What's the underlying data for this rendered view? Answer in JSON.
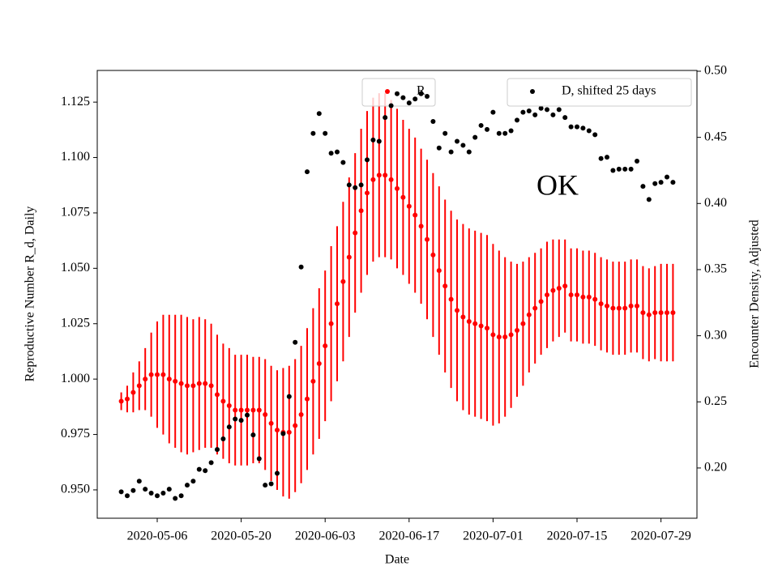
{
  "chart_data": {
    "type": "scatter",
    "x_label": "Date",
    "y_label": "Reproductive Number R_d, Daily",
    "y2_label": "Encounter Density, Adjusted",
    "annotation": "OK",
    "xlim": [
      "2020-04-26",
      "2020-08-04"
    ],
    "xticks": [
      "2020-05-06",
      "2020-05-20",
      "2020-06-03",
      "2020-06-17",
      "2020-07-01",
      "2020-07-15",
      "2020-07-29"
    ],
    "ylim": [
      0.9372,
      1.1393
    ],
    "yticks": [
      {
        "value": 0.95,
        "label": "0.950"
      },
      {
        "value": 0.975,
        "label": "0.975"
      },
      {
        "value": 1.0,
        "label": "1.000"
      },
      {
        "value": 1.025,
        "label": "1.025"
      },
      {
        "value": 1.05,
        "label": "1.050"
      },
      {
        "value": 1.075,
        "label": "1.075"
      },
      {
        "value": 1.1,
        "label": "1.100"
      },
      {
        "value": 1.125,
        "label": "1.125"
      }
    ],
    "y_color": "#ff0000",
    "y2lim": [
      0.162,
      0.5006
    ],
    "y2ticks": [
      {
        "value": 0.2,
        "label": "0.20"
      },
      0.25,
      {
        "value": 0.3,
        "label": "0.30"
      },
      0.35,
      {
        "value": 0.4,
        "label": "0.40"
      },
      0.45,
      {
        "value": 0.5,
        "label": "0.50"
      }
    ],
    "x": [
      "2020-04-30",
      "2020-05-01",
      "2020-05-02",
      "2020-05-03",
      "2020-05-04",
      "2020-05-05",
      "2020-05-06",
      "2020-05-07",
      "2020-05-08",
      "2020-05-09",
      "2020-05-10",
      "2020-05-11",
      "2020-05-12",
      "2020-05-13",
      "2020-05-14",
      "2020-05-15",
      "2020-05-16",
      "2020-05-17",
      "2020-05-18",
      "2020-05-19",
      "2020-05-20",
      "2020-05-21",
      "2020-05-22",
      "2020-05-23",
      "2020-05-24",
      "2020-05-25",
      "2020-05-26",
      "2020-05-27",
      "2020-05-28",
      "2020-05-29",
      "2020-05-30",
      "2020-05-31",
      "2020-06-01",
      "2020-06-02",
      "2020-06-03",
      "2020-06-04",
      "2020-06-05",
      "2020-06-06",
      "2020-06-07",
      "2020-06-08",
      "2020-06-09",
      "2020-06-10",
      "2020-06-11",
      "2020-06-12",
      "2020-06-13",
      "2020-06-14",
      "2020-06-15",
      "2020-06-16",
      "2020-06-17",
      "2020-06-18",
      "2020-06-19",
      "2020-06-20",
      "2020-06-21",
      "2020-06-22",
      "2020-06-23",
      "2020-06-24",
      "2020-06-25",
      "2020-06-26",
      "2020-06-27",
      "2020-06-28",
      "2020-06-29",
      "2020-06-30",
      "2020-07-01",
      "2020-07-02",
      "2020-07-03",
      "2020-07-04",
      "2020-07-05",
      "2020-07-06",
      "2020-07-07",
      "2020-07-08",
      "2020-07-09",
      "2020-07-10",
      "2020-07-11",
      "2020-07-12",
      "2020-07-13",
      "2020-07-14",
      "2020-07-15",
      "2020-07-16",
      "2020-07-17",
      "2020-07-18",
      "2020-07-19",
      "2020-07-20",
      "2020-07-21",
      "2020-07-22",
      "2020-07-23",
      "2020-07-24",
      "2020-07-25",
      "2020-07-26",
      "2020-07-27",
      "2020-07-28",
      "2020-07-29",
      "2020-07-30",
      "2020-07-31"
    ],
    "series": [
      {
        "name": "R",
        "color": "#ff0000",
        "axis": "y",
        "legend": "upper center",
        "values": [
          0.99,
          0.991,
          0.994,
          0.997,
          1.0,
          1.002,
          1.002,
          1.002,
          1.0,
          0.999,
          0.998,
          0.997,
          0.997,
          0.998,
          0.998,
          0.997,
          0.993,
          0.99,
          0.988,
          0.986,
          0.986,
          0.986,
          0.986,
          0.986,
          0.984,
          0.98,
          0.977,
          0.976,
          0.976,
          0.979,
          0.984,
          0.991,
          0.999,
          1.007,
          1.015,
          1.025,
          1.034,
          1.044,
          1.055,
          1.066,
          1.076,
          1.084,
          1.09,
          1.092,
          1.092,
          1.09,
          1.086,
          1.082,
          1.078,
          1.074,
          1.069,
          1.063,
          1.056,
          1.049,
          1.042,
          1.036,
          1.031,
          1.028,
          1.026,
          1.025,
          1.024,
          1.023,
          1.02,
          1.019,
          1.019,
          1.02,
          1.022,
          1.025,
          1.029,
          1.032,
          1.035,
          1.038,
          1.04,
          1.041,
          1.042,
          1.038,
          1.038,
          1.037,
          1.037,
          1.036,
          1.034,
          1.033,
          1.032,
          1.032,
          1.032,
          1.033,
          1.033,
          1.03,
          1.029,
          1.03,
          1.03,
          1.03,
          1.03
        ],
        "errors": [
          0.004,
          0.006,
          0.009,
          0.011,
          0.014,
          0.019,
          0.024,
          0.027,
          0.029,
          0.03,
          0.031,
          0.031,
          0.03,
          0.03,
          0.029,
          0.028,
          0.027,
          0.026,
          0.026,
          0.025,
          0.025,
          0.025,
          0.024,
          0.024,
          0.025,
          0.026,
          0.027,
          0.029,
          0.03,
          0.03,
          0.031,
          0.032,
          0.033,
          0.034,
          0.034,
          0.035,
          0.035,
          0.036,
          0.036,
          0.036,
          0.037,
          0.037,
          0.037,
          0.037,
          0.037,
          0.036,
          0.036,
          0.035,
          0.035,
          0.035,
          0.035,
          0.036,
          0.037,
          0.038,
          0.039,
          0.04,
          0.041,
          0.042,
          0.042,
          0.042,
          0.042,
          0.042,
          0.041,
          0.039,
          0.036,
          0.033,
          0.03,
          0.028,
          0.026,
          0.025,
          0.024,
          0.024,
          0.023,
          0.022,
          0.021,
          0.021,
          0.021,
          0.021,
          0.021,
          0.021,
          0.021,
          0.021,
          0.021,
          0.021,
          0.021,
          0.021,
          0.021,
          0.021,
          0.021,
          0.021,
          0.022,
          0.022,
          0.022
        ]
      },
      {
        "name": "D, shifted 25 days",
        "color": "#000000",
        "axis": "y2",
        "legend": "upper right",
        "values": [
          0.182,
          0.179,
          0.183,
          0.19,
          0.184,
          0.181,
          0.179,
          0.181,
          0.184,
          0.177,
          0.179,
          0.187,
          0.19,
          0.199,
          0.198,
          0.204,
          0.214,
          0.222,
          0.231,
          0.237,
          0.236,
          0.24,
          0.225,
          0.207,
          0.187,
          0.188,
          0.196,
          0.226,
          0.254,
          0.295,
          0.352,
          0.424,
          0.453,
          0.468,
          0.453,
          0.438,
          0.439,
          0.431,
          0.414,
          0.412,
          0.414,
          0.433,
          0.448,
          0.447,
          0.465,
          0.474,
          0.483,
          0.48,
          0.476,
          0.479,
          0.483,
          0.481,
          0.462,
          0.442,
          0.453,
          0.439,
          0.447,
          0.444,
          0.439,
          0.45,
          0.459,
          0.456,
          0.469,
          0.453,
          0.453,
          0.455,
          0.463,
          0.469,
          0.47,
          0.467,
          0.472,
          0.471,
          0.467,
          0.471,
          0.465,
          0.458,
          0.458,
          0.457,
          0.455,
          0.452,
          0.434,
          0.435,
          0.425,
          0.426,
          0.426,
          0.426,
          0.432,
          0.413,
          0.403,
          0.415,
          0.416,
          0.42,
          0.416
        ]
      }
    ]
  }
}
